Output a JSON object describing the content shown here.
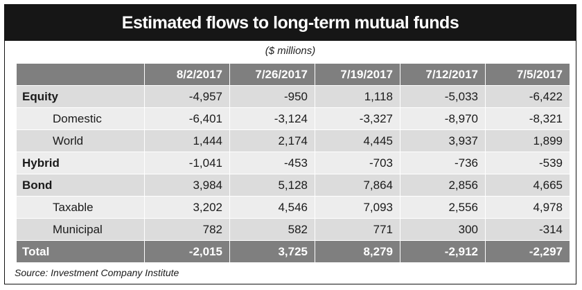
{
  "title": "Estimated flows to long-term mutual funds",
  "subtitle": "($ millions)",
  "source": "Source: Investment Company Institute",
  "chart_data": {
    "type": "table",
    "title": "Estimated flows to long-term mutual funds",
    "subtitle": "($ millions)",
    "columns": [
      "8/2/2017",
      "7/26/2017",
      "7/19/2017",
      "7/12/2017",
      "7/5/2017"
    ],
    "rows": [
      {
        "label": "Equity",
        "style": "bold",
        "values": [
          "-4,957",
          "-950",
          "1,118",
          "-5,033",
          "-6,422"
        ]
      },
      {
        "label": "Domestic",
        "style": "indent",
        "values": [
          "-6,401",
          "-3,124",
          "-3,327",
          "-8,970",
          "-8,321"
        ]
      },
      {
        "label": "World",
        "style": "indent",
        "values": [
          "1,444",
          "2,174",
          "4,445",
          "3,937",
          "1,899"
        ]
      },
      {
        "label": "Hybrid",
        "style": "bold",
        "values": [
          "-1,041",
          "-453",
          "-703",
          "-736",
          "-539"
        ]
      },
      {
        "label": "Bond",
        "style": "bold",
        "values": [
          "3,984",
          "5,128",
          "7,864",
          "2,856",
          "4,665"
        ]
      },
      {
        "label": "Taxable",
        "style": "indent",
        "values": [
          "3,202",
          "4,546",
          "7,093",
          "2,556",
          "4,978"
        ]
      },
      {
        "label": "Municipal",
        "style": "indent",
        "values": [
          "782",
          "582",
          "771",
          "300",
          "-314"
        ]
      }
    ],
    "total": {
      "label": "Total",
      "values": [
        "-2,015",
        "3,725",
        "8,279",
        "-2,912",
        "-2,297"
      ]
    },
    "source": "Source: Investment Company Institute"
  },
  "colors": {
    "title_bar": "#161616",
    "header_fill": "#7f7f7f",
    "row_fill_a": "#dcdcdc",
    "row_fill_b": "#ededed"
  }
}
